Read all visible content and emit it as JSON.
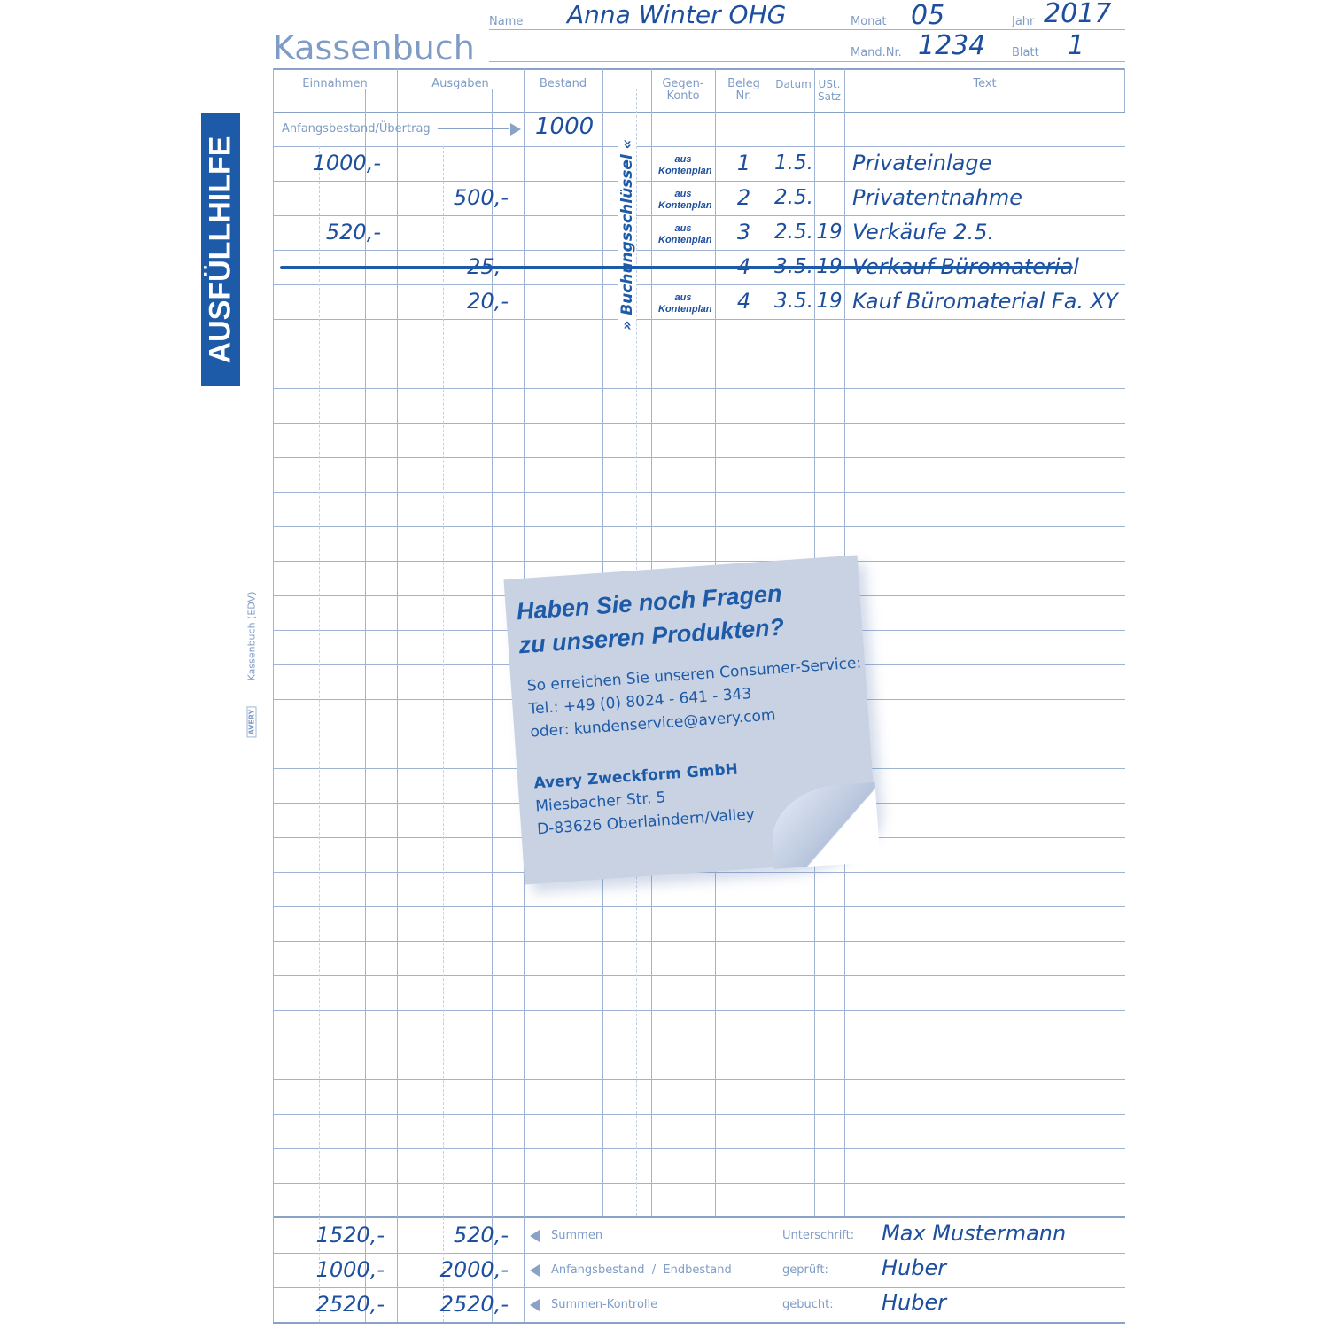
{
  "sidebar": {
    "label": "AUSFÜLLHILFE",
    "form_name": "Kassenbuch (EDV)",
    "logo_text": "AVERY Zweckform"
  },
  "header": {
    "title": "Kassenbuch",
    "name_label": "Name",
    "name_value": "Anna Winter OHG",
    "monat_label": "Monat",
    "monat_value": "05",
    "jahr_label": "Jahr",
    "jahr_value": "2017",
    "mand_label": "Mand.Nr.",
    "mand_value": "1234",
    "blatt_label": "Blatt",
    "blatt_value": "1"
  },
  "columns": {
    "einnahmen": "Einnahmen",
    "ausgaben": "Ausgaben",
    "bestand": "Bestand",
    "gegenkonto": "Gegen-\nKonto",
    "beleg": "Beleg\nNr.",
    "datum": "Datum",
    "ust": "USt.\nSatz",
    "text": "Text"
  },
  "anfangsbestand": {
    "label": "Anfangsbestand/Übertrag",
    "value": "1000"
  },
  "buchungsschluessel": "» Buchungsschlüssel «",
  "entries": [
    {
      "einnahmen": "1000,-",
      "ausgaben": "",
      "gegenkonto": "aus Kontenplan",
      "beleg": "1",
      "datum": "1.5.",
      "ust": "",
      "text": "Privateinlage",
      "struck": false
    },
    {
      "einnahmen": "",
      "ausgaben": "500,-",
      "gegenkonto": "aus Kontenplan",
      "beleg": "2",
      "datum": "2.5.",
      "ust": "",
      "text": "Privatentnahme",
      "struck": false
    },
    {
      "einnahmen": "520,-",
      "ausgaben": "",
      "gegenkonto": "aus Kontenplan",
      "beleg": "3",
      "datum": "2.5.",
      "ust": "19",
      "text": "Verkäufe 2.5.",
      "struck": false
    },
    {
      "einnahmen": "",
      "ausgaben": "25,-",
      "gegenkonto": "",
      "beleg": "4",
      "datum": "3.5.",
      "ust": "19",
      "text": "Verkauf Büromaterial",
      "struck": true
    },
    {
      "einnahmen": "",
      "ausgaben": "20,-",
      "gegenkonto": "aus Kontenplan",
      "beleg": "4",
      "datum": "3.5.",
      "ust": "19",
      "text": "Kauf Büromaterial Fa. XY",
      "struck": false
    }
  ],
  "summary": [
    {
      "einnahmen": "1520,-",
      "ausgaben": "520,-",
      "label": "Summen",
      "sign_label": "Unterschrift:",
      "sign_value": "Max Mustermann"
    },
    {
      "einnahmen": "1000,-",
      "ausgaben": "2000,-",
      "label": "Anfangsbestand  /  Endbestand",
      "sign_label": "geprüft:",
      "sign_value": "Huber"
    },
    {
      "einnahmen": "2520,-",
      "ausgaben": "2520,-",
      "label": "Summen-Kontrolle",
      "sign_label": "gebucht:",
      "sign_value": "Huber"
    }
  ],
  "note": {
    "heading": "Haben Sie noch Fragen zu unseren Produkten?",
    "line1": "So erreichen Sie unseren Consumer-Service:",
    "line2": "Tel.: +49 (0) 8024 - 641 - 343",
    "line3": "oder:  kundenservice@avery.com",
    "company": "Avery Zweckform GmbH",
    "street": "Miesbacher Str. 5",
    "city": "D-83626 Oberlaindern/Valley"
  },
  "colors": {
    "accent": "#1d5aa8",
    "ink": "#1d4f9e",
    "rule": "#9fb4d4"
  }
}
